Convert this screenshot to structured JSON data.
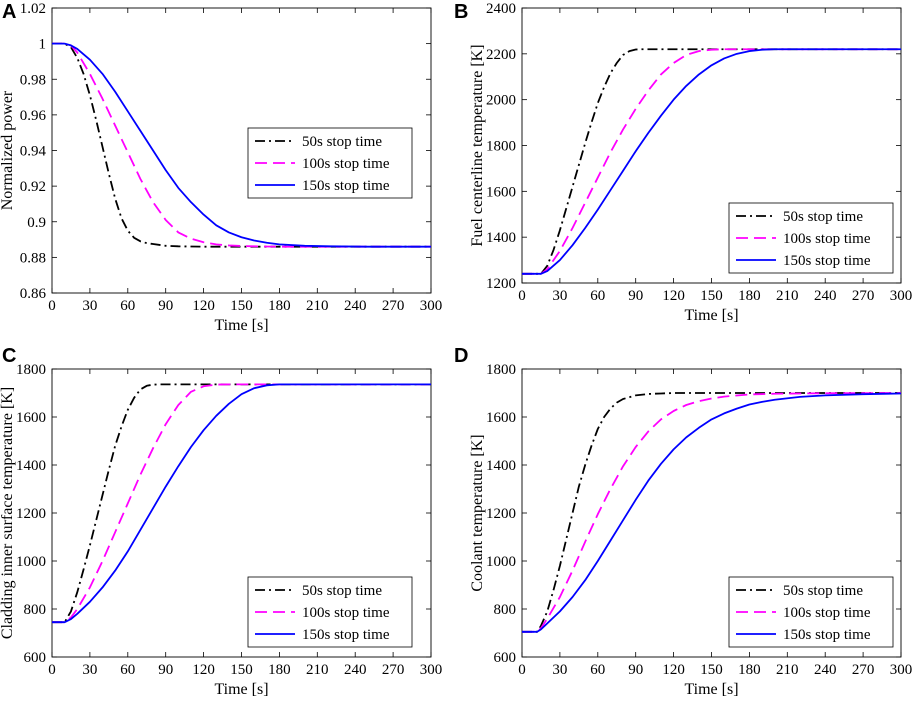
{
  "colors": {
    "series_50s": "#000000",
    "series_100s": "#FF00FF",
    "series_150s": "#0000FF",
    "axis": "#000000",
    "background": "#FFFFFF"
  },
  "chart_data": [
    {
      "panel": "A",
      "type": "line",
      "title": "",
      "xlabel": "Time [s]",
      "ylabel": "Normalized power",
      "xlim": [
        0,
        300
      ],
      "ylim": [
        0.86,
        1.02
      ],
      "xticks": [
        0,
        30,
        60,
        90,
        120,
        150,
        180,
        210,
        240,
        270,
        300
      ],
      "yticks": [
        0.86,
        0.88,
        0.9,
        0.92,
        0.94,
        0.96,
        0.98,
        1,
        1.02
      ],
      "ytick_labels": [
        "0.86",
        "0.88",
        "0.9",
        "0.92",
        "0.94",
        "0.96",
        "0.98",
        "1",
        "1.02"
      ],
      "grid": false,
      "legend_position": "center-right",
      "series": [
        {
          "name": "50s stop time",
          "style": "dashdot",
          "x": [
            0,
            10,
            15,
            20,
            25,
            30,
            35,
            40,
            45,
            50,
            55,
            60,
            65,
            70,
            75,
            80,
            90,
            100,
            120,
            150,
            200,
            300
          ],
          "y": [
            1.0,
            1.0,
            0.998,
            0.992,
            0.983,
            0.971,
            0.957,
            0.942,
            0.927,
            0.913,
            0.902,
            0.895,
            0.891,
            0.889,
            0.888,
            0.8875,
            0.8865,
            0.8862,
            0.886,
            0.886,
            0.886,
            0.886
          ]
        },
        {
          "name": "100s stop time",
          "style": "dashed",
          "x": [
            0,
            10,
            15,
            20,
            30,
            40,
            50,
            60,
            70,
            80,
            90,
            100,
            110,
            120,
            130,
            140,
            150,
            160,
            180,
            200,
            250,
            300
          ],
          "y": [
            1.0,
            1.0,
            0.999,
            0.995,
            0.983,
            0.969,
            0.954,
            0.939,
            0.924,
            0.911,
            0.901,
            0.894,
            0.8905,
            0.8885,
            0.8873,
            0.8867,
            0.8864,
            0.8862,
            0.886,
            0.886,
            0.886,
            0.886
          ]
        },
        {
          "name": "150s stop time",
          "style": "solid",
          "x": [
            0,
            10,
            15,
            20,
            30,
            40,
            50,
            60,
            70,
            80,
            90,
            100,
            110,
            120,
            130,
            140,
            150,
            160,
            170,
            180,
            200,
            220,
            250,
            300
          ],
          "y": [
            1.0,
            1.0,
            0.999,
            0.997,
            0.991,
            0.983,
            0.973,
            0.962,
            0.951,
            0.94,
            0.929,
            0.919,
            0.911,
            0.904,
            0.898,
            0.894,
            0.8913,
            0.8895,
            0.8882,
            0.8873,
            0.8865,
            0.8862,
            0.886,
            0.886
          ]
        }
      ]
    },
    {
      "panel": "B",
      "type": "line",
      "title": "",
      "xlabel": "Time [s]",
      "ylabel": "Fuel centerline temperature [K]",
      "xlim": [
        0,
        300
      ],
      "ylim": [
        1200,
        2400
      ],
      "xticks": [
        0,
        30,
        60,
        90,
        120,
        150,
        180,
        210,
        240,
        270,
        300
      ],
      "yticks": [
        1200,
        1400,
        1600,
        1800,
        2000,
        2200,
        2400
      ],
      "ytick_labels": [
        "1200",
        "1400",
        "1600",
        "1800",
        "2000",
        "2200",
        "2400"
      ],
      "grid": false,
      "legend_position": "bottom-right",
      "series": [
        {
          "name": "50s stop time",
          "style": "dashdot",
          "x": [
            0,
            15,
            20,
            25,
            30,
            35,
            40,
            45,
            50,
            55,
            60,
            65,
            70,
            75,
            80,
            85,
            90,
            95,
            100,
            110,
            300
          ],
          "y": [
            1240,
            1240,
            1275,
            1345,
            1430,
            1525,
            1620,
            1715,
            1810,
            1900,
            1985,
            2055,
            2115,
            2160,
            2195,
            2212,
            2219,
            2220,
            2220,
            2220,
            2220
          ]
        },
        {
          "name": "100s stop time",
          "style": "dashed",
          "x": [
            0,
            15,
            20,
            30,
            40,
            50,
            60,
            70,
            80,
            90,
            100,
            110,
            120,
            130,
            140,
            150,
            160,
            300
          ],
          "y": [
            1240,
            1240,
            1260,
            1340,
            1440,
            1550,
            1660,
            1770,
            1870,
            1960,
            2040,
            2110,
            2160,
            2195,
            2212,
            2218,
            2220,
            2220
          ]
        },
        {
          "name": "150s stop time",
          "style": "solid",
          "x": [
            0,
            15,
            20,
            30,
            40,
            50,
            60,
            70,
            80,
            90,
            100,
            110,
            120,
            130,
            140,
            150,
            160,
            170,
            180,
            190,
            200,
            300
          ],
          "y": [
            1240,
            1240,
            1252,
            1300,
            1365,
            1440,
            1520,
            1605,
            1690,
            1775,
            1855,
            1930,
            2000,
            2060,
            2110,
            2150,
            2180,
            2200,
            2212,
            2218,
            2220,
            2220
          ]
        }
      ]
    },
    {
      "panel": "C",
      "type": "line",
      "title": "",
      "xlabel": "Time [s]",
      "ylabel": "Cladding inner surface temperature [K]",
      "xlim": [
        0,
        300
      ],
      "ylim": [
        600,
        1800
      ],
      "xticks": [
        0,
        30,
        60,
        90,
        120,
        150,
        180,
        210,
        240,
        270,
        300
      ],
      "yticks": [
        600,
        800,
        1000,
        1200,
        1400,
        1600,
        1800
      ],
      "ytick_labels": [
        "600",
        "800",
        "1000",
        "1200",
        "1400",
        "1600",
        "1800"
      ],
      "grid": false,
      "legend_position": "bottom-right",
      "series": [
        {
          "name": "50s stop time",
          "style": "dashdot",
          "x": [
            0,
            10,
            15,
            20,
            25,
            30,
            35,
            40,
            45,
            50,
            55,
            60,
            65,
            70,
            75,
            80,
            85,
            90,
            100,
            300
          ],
          "y": [
            745,
            745,
            790,
            870,
            965,
            1065,
            1170,
            1275,
            1380,
            1480,
            1560,
            1630,
            1680,
            1715,
            1730,
            1735,
            1736,
            1736,
            1736,
            1736
          ]
        },
        {
          "name": "100s stop time",
          "style": "dashed",
          "x": [
            0,
            10,
            15,
            20,
            30,
            40,
            50,
            60,
            70,
            80,
            90,
            100,
            110,
            120,
            130,
            140,
            150,
            300
          ],
          "y": [
            745,
            745,
            765,
            800,
            890,
            1000,
            1120,
            1240,
            1360,
            1470,
            1570,
            1650,
            1705,
            1728,
            1735,
            1736,
            1736,
            1736
          ]
        },
        {
          "name": "150s stop time",
          "style": "solid",
          "x": [
            0,
            10,
            15,
            20,
            30,
            40,
            50,
            60,
            70,
            80,
            90,
            100,
            110,
            120,
            130,
            140,
            150,
            160,
            170,
            180,
            190,
            300
          ],
          "y": [
            745,
            745,
            758,
            780,
            830,
            890,
            960,
            1040,
            1130,
            1220,
            1310,
            1395,
            1475,
            1545,
            1605,
            1655,
            1695,
            1720,
            1732,
            1736,
            1736,
            1736
          ]
        }
      ]
    },
    {
      "panel": "D",
      "type": "line",
      "title": "",
      "xlabel": "Time [s]",
      "ylabel": "Coolant temperature [K]",
      "xlim": [
        0,
        300
      ],
      "ylim": [
        600,
        1800
      ],
      "xticks": [
        0,
        30,
        60,
        90,
        120,
        150,
        180,
        210,
        240,
        270,
        300
      ],
      "yticks": [
        600,
        800,
        1000,
        1200,
        1400,
        1600,
        1800
      ],
      "ytick_labels": [
        "600",
        "800",
        "1000",
        "1200",
        "1400",
        "1600",
        "1800"
      ],
      "grid": false,
      "legend_position": "bottom-right",
      "series": [
        {
          "name": "50s stop time",
          "style": "dashdot",
          "x": [
            0,
            12,
            15,
            20,
            25,
            30,
            35,
            40,
            45,
            50,
            55,
            60,
            65,
            70,
            75,
            80,
            90,
            100,
            110,
            120,
            150,
            300
          ],
          "y": [
            705,
            705,
            730,
            790,
            880,
            980,
            1090,
            1200,
            1310,
            1400,
            1480,
            1550,
            1600,
            1635,
            1660,
            1675,
            1690,
            1696,
            1698,
            1700,
            1700,
            1700
          ]
        },
        {
          "name": "100s stop time",
          "style": "dashed",
          "x": [
            0,
            12,
            15,
            20,
            30,
            40,
            50,
            60,
            70,
            80,
            90,
            100,
            110,
            120,
            130,
            140,
            150,
            160,
            180,
            200,
            240,
            300
          ],
          "y": [
            705,
            705,
            720,
            760,
            850,
            960,
            1080,
            1195,
            1300,
            1395,
            1475,
            1540,
            1590,
            1625,
            1650,
            1666,
            1677,
            1685,
            1694,
            1697,
            1699,
            1700
          ]
        },
        {
          "name": "150s stop time",
          "style": "solid",
          "x": [
            0,
            12,
            15,
            20,
            30,
            40,
            50,
            60,
            70,
            80,
            90,
            100,
            110,
            120,
            130,
            140,
            150,
            160,
            170,
            180,
            190,
            200,
            220,
            240,
            270,
            300
          ],
          "y": [
            705,
            705,
            715,
            740,
            790,
            850,
            920,
            1000,
            1085,
            1170,
            1255,
            1335,
            1405,
            1465,
            1515,
            1555,
            1590,
            1615,
            1635,
            1652,
            1663,
            1672,
            1684,
            1690,
            1695,
            1698
          ]
        }
      ]
    }
  ]
}
